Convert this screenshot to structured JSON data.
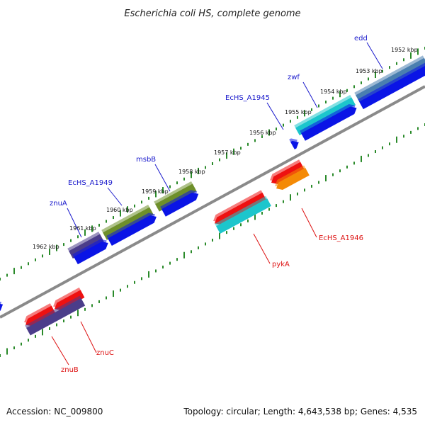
{
  "title": "Escherichia coli HS, complete genome",
  "colors": {
    "backbone": "#8a8a8a",
    "tick": "#2a8a2a",
    "label_blue": "#1a1acc",
    "label_red": "#dd1111",
    "feature_blue": "#0a14e6",
    "feature_red": "#ee1111",
    "feature_cyan": "#1cc6cc",
    "feature_navy": "#4b3d8a",
    "feature_olive": "#6e8f2a",
    "feature_orange": "#f48a06",
    "feature_steel": "#4a7fb0"
  },
  "kbp_labels": [
    "1952 kbp",
    "1953 kbp",
    "1954 kbp",
    "1955 kbp",
    "1956 kbp",
    "1957 kbp",
    "1958 kbp",
    "1959 kbp",
    "1960 kbp",
    "1961 kbp",
    "1962 kbp"
  ],
  "genes_forward": [
    "edd",
    "zwf",
    "EcHS_A1945",
    "msbB",
    "EcHS_A1949",
    "znuA"
  ],
  "genes_reverse": [
    "EcHS_A1946",
    "pykA",
    "znuC",
    "znuB"
  ],
  "footer": {
    "accession": "Accession: NC_009800",
    "summary": "Topology: circular; Length: 4,643,538 bp; Genes: 4,535"
  }
}
